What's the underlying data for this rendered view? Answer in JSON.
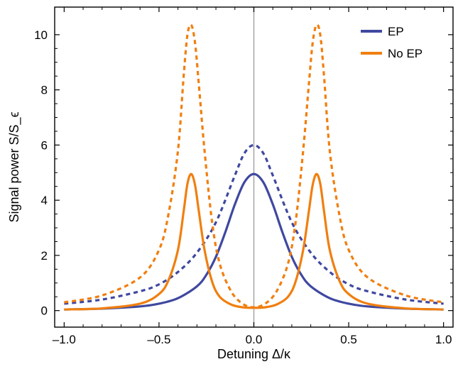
{
  "chart_data": {
    "type": "line",
    "xlabel": "Detuning Δ/κ",
    "ylabel": "Signal power S/S_ϵ",
    "xlim": [
      -1.05,
      1.05
    ],
    "ylim": [
      -0.6,
      11.0
    ],
    "xticks": [
      -1.0,
      -0.5,
      0.0,
      0.5,
      1.0
    ],
    "xtick_labels": [
      "–1.0",
      "–0.5",
      "0.0",
      "0.5",
      "1.0"
    ],
    "yticks": [
      0,
      2,
      4,
      6,
      8,
      10
    ],
    "ytick_labels": [
      "0",
      "2",
      "4",
      "6",
      "8",
      "10"
    ],
    "vertical_reference_line_x": 0.0,
    "legend": {
      "placement": "top-right",
      "entries": [
        "EP",
        "No EP"
      ]
    },
    "colors": {
      "EP": "#3f48a0",
      "No EP": "#f07f10",
      "reference_line": "#a0a0a0"
    },
    "series": [
      {
        "name": "EP",
        "style": "solid",
        "x": [
          -1.0,
          -0.8,
          -0.6,
          -0.5,
          -0.4,
          -0.3,
          -0.25,
          -0.2,
          -0.15,
          -0.1,
          -0.05,
          0.0,
          0.05,
          0.1,
          0.15,
          0.2,
          0.25,
          0.3,
          0.4,
          0.5,
          0.6,
          0.8,
          1.0
        ],
        "y": [
          0.04,
          0.07,
          0.15,
          0.25,
          0.45,
          0.88,
          1.3,
          1.95,
          2.85,
          3.85,
          4.65,
          4.95,
          4.65,
          3.85,
          2.85,
          1.95,
          1.3,
          0.88,
          0.45,
          0.25,
          0.15,
          0.07,
          0.04
        ]
      },
      {
        "name": "EP",
        "style": "dashed",
        "x": [
          -1.0,
          -0.8,
          -0.6,
          -0.5,
          -0.4,
          -0.3,
          -0.2,
          -0.1,
          -0.05,
          0.0,
          0.05,
          0.1,
          0.2,
          0.3,
          0.4,
          0.5,
          0.6,
          0.8,
          1.0
        ],
        "y": [
          0.25,
          0.4,
          0.7,
          0.95,
          1.4,
          2.1,
          3.2,
          4.9,
          5.7,
          6.0,
          5.7,
          4.9,
          3.2,
          2.1,
          1.4,
          0.95,
          0.7,
          0.4,
          0.25
        ]
      },
      {
        "name": "No EP",
        "style": "solid",
        "x": [
          -1.0,
          -0.8,
          -0.6,
          -0.5,
          -0.45,
          -0.4,
          -0.37,
          -0.35,
          -0.33,
          -0.31,
          -0.29,
          -0.26,
          -0.22,
          -0.18,
          -0.12,
          -0.06,
          0.0,
          0.06,
          0.12,
          0.18,
          0.22,
          0.26,
          0.29,
          0.31,
          0.33,
          0.35,
          0.37,
          0.4,
          0.45,
          0.5,
          0.6,
          0.8,
          1.0
        ],
        "y": [
          0.04,
          0.08,
          0.25,
          0.6,
          1.1,
          2.2,
          3.6,
          4.6,
          4.95,
          4.55,
          3.6,
          2.2,
          1.05,
          0.5,
          0.22,
          0.12,
          0.1,
          0.12,
          0.22,
          0.5,
          1.05,
          2.2,
          3.6,
          4.55,
          4.95,
          4.6,
          3.6,
          2.2,
          1.1,
          0.6,
          0.25,
          0.08,
          0.04
        ]
      },
      {
        "name": "No EP",
        "style": "dashed",
        "x": [
          -1.0,
          -0.8,
          -0.6,
          -0.5,
          -0.45,
          -0.4,
          -0.37,
          -0.35,
          -0.33,
          -0.31,
          -0.29,
          -0.26,
          -0.22,
          -0.18,
          -0.12,
          -0.06,
          0.0,
          0.06,
          0.12,
          0.18,
          0.22,
          0.26,
          0.29,
          0.31,
          0.33,
          0.35,
          0.37,
          0.4,
          0.45,
          0.5,
          0.6,
          0.8,
          1.0
        ],
        "y": [
          0.3,
          0.55,
          1.2,
          2.2,
          3.5,
          5.8,
          8.5,
          10.0,
          10.35,
          9.7,
          8.2,
          5.8,
          3.2,
          1.7,
          0.7,
          0.25,
          0.12,
          0.25,
          0.7,
          1.7,
          3.2,
          5.8,
          8.2,
          9.7,
          10.35,
          10.0,
          8.5,
          5.8,
          3.5,
          2.2,
          1.2,
          0.55,
          0.3
        ]
      }
    ]
  }
}
